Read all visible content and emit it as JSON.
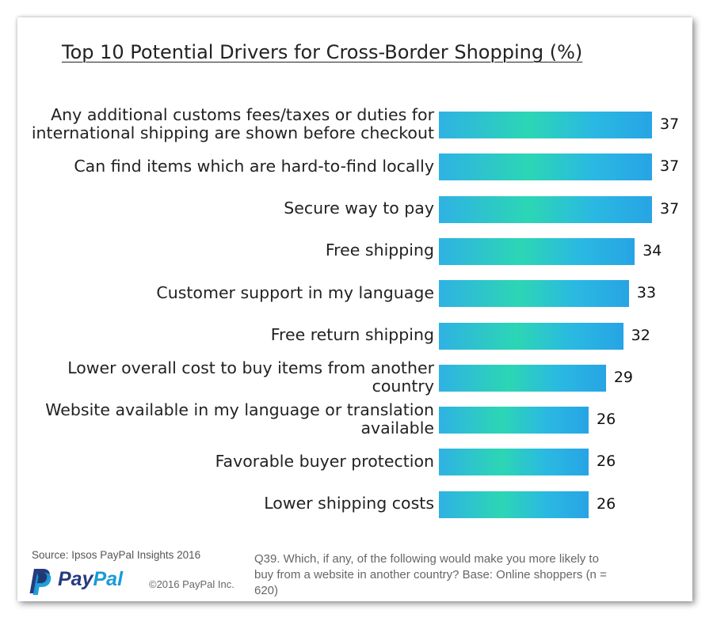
{
  "chart_data": {
    "type": "bar",
    "orientation": "horizontal",
    "title": "Top 10 Potential Drivers for Cross-Border Shopping (%)",
    "categories": [
      "Any additional customs fees/taxes or duties for international shipping are shown before checkout",
      "Can find items which are hard-to-find locally",
      "Secure way to pay",
      "Free shipping",
      "Customer support in my language",
      "Free return shipping",
      "Lower overall cost to buy items from another country",
      "Website available in my language or translation available",
      "Favorable buyer protection",
      "Lower shipping costs"
    ],
    "category_lines": [
      [
        "Any additional customs fees/taxes or duties for",
        "international shipping are shown before checkout"
      ],
      [
        "Can find items which are hard-to-find locally"
      ],
      [
        "Secure way to pay"
      ],
      [
        "Free shipping"
      ],
      [
        "Customer support in my language"
      ],
      [
        "Free return shipping"
      ],
      [
        "Lower overall cost to buy items from another",
        "country"
      ],
      [
        "Website available in my language or translation",
        "available"
      ],
      [
        "Favorable buyer protection"
      ],
      [
        "Lower shipping costs"
      ]
    ],
    "values": [
      37,
      37,
      37,
      34,
      33,
      32,
      29,
      26,
      26,
      26
    ],
    "value_labels": [
      "37",
      "37",
      "37",
      "34",
      "33",
      "32",
      "29",
      "26",
      "26",
      "26"
    ],
    "xlim": [
      0,
      37
    ],
    "grid": false,
    "legend": "none",
    "bar_color": "#2cc8d0"
  },
  "footer": {
    "source": "Source: Ipsos PayPal Insights 2016",
    "logo_text_pay": "Pay",
    "logo_text_pal": "Pal",
    "copyright": "©2016 PayPal Inc.",
    "note": "Q39. Which, if any, of the following would make you more likely to buy from a website in another country? Base: Online shoppers (n = 620)"
  },
  "colors": {
    "paypal_dark": "#253b80",
    "paypal_light": "#179bd7"
  }
}
